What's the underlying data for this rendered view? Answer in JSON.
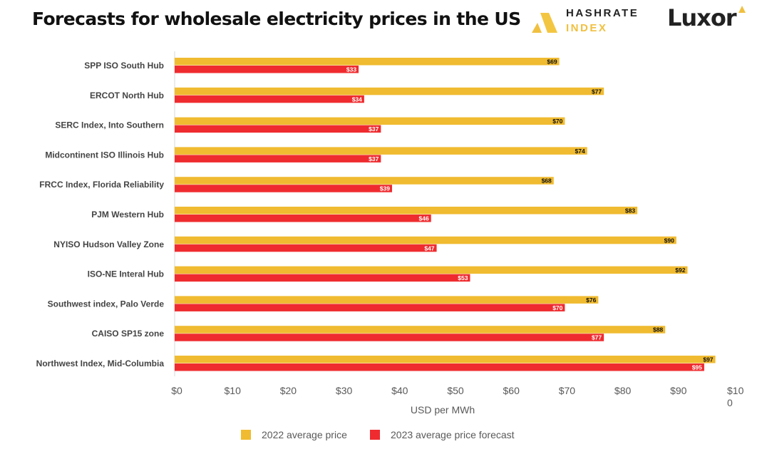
{
  "header": {
    "title": "Forecasts for wholesale electricity prices in the US"
  },
  "logos": {
    "hashrate_line1": "HASHRATE",
    "hashrate_line2": "INDEX",
    "luxor": "Luxor"
  },
  "chart_data": {
    "type": "bar",
    "orientation": "horizontal",
    "title": "Forecasts for wholesale electricity prices in the US",
    "xlabel": "USD per MWh",
    "ylabel": "",
    "xlim": [
      0,
      100
    ],
    "x_ticks": [
      "$0",
      "$10",
      "$20",
      "$30",
      "$40",
      "$50",
      "$60",
      "$70",
      "$80",
      "$90",
      "$10\n0"
    ],
    "grid": false,
    "legend_position": "bottom",
    "categories": [
      "SPP ISO South Hub",
      "ERCOT North Hub",
      "SERC Index, Into Southern",
      "Midcontinent ISO Illinois Hub",
      "FRCC Index, Florida Reliability",
      "PJM Western Hub",
      "NYISO Hudson Valley Zone",
      "ISO-NE Interal Hub",
      "Southwest index, Palo Verde",
      "CAISO SP15 zone",
      "Northwest Index, Mid-Columbia"
    ],
    "series": [
      {
        "name": "2022 average price",
        "color": "#f0bb30",
        "values": [
          69,
          77,
          70,
          74,
          68,
          83,
          90,
          92,
          76,
          88,
          97
        ],
        "labels": [
          "$69",
          "$77",
          "$70",
          "$74",
          "$68",
          "$83",
          "$90",
          "$92",
          "$76",
          "$88",
          "$97"
        ]
      },
      {
        "name": "2023 average price forecast",
        "color": "#ef2b2f",
        "values": [
          33,
          34,
          37,
          37,
          39,
          46,
          47,
          53,
          70,
          77,
          95
        ],
        "labels": [
          "$33",
          "$34",
          "$37",
          "$37",
          "$39",
          "$46",
          "$47",
          "$53",
          "$70",
          "$77",
          "$95"
        ]
      }
    ]
  }
}
